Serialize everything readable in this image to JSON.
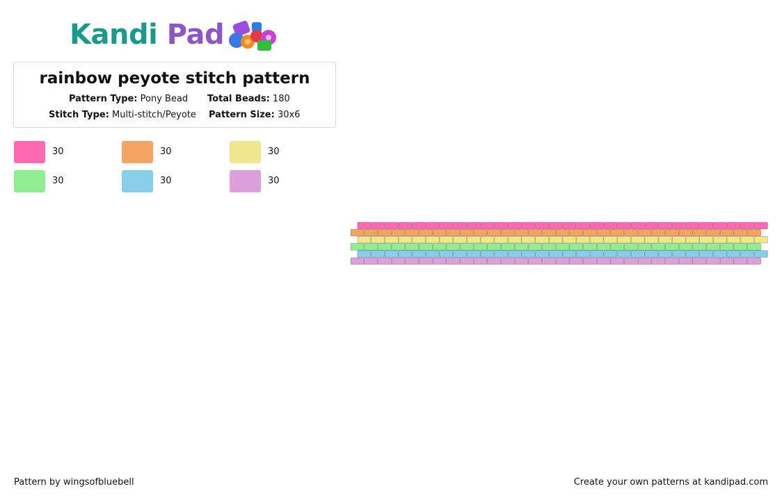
{
  "brand": {
    "name_part1": "Kandi",
    "name_part2": "Pad",
    "logo_icon": "beads-icon"
  },
  "pattern": {
    "title": "rainbow peyote stitch pattern",
    "type_label": "Pattern Type:",
    "type_value": "Pony Bead",
    "total_label": "Total Beads:",
    "total_value": "180",
    "stitch_label": "Stitch Type:",
    "stitch_value": "Multi-stitch/Peyote",
    "size_label": "Pattern Size:",
    "size_value": "30x6"
  },
  "palette": [
    {
      "color": "#ff69b4",
      "count": "30"
    },
    {
      "color": "#f4a460",
      "count": "30"
    },
    {
      "color": "#f0e68c",
      "count": "30"
    },
    {
      "color": "#90ee90",
      "count": "30"
    },
    {
      "color": "#87ceeb",
      "count": "30"
    },
    {
      "color": "#dda0dd",
      "count": "30"
    }
  ],
  "grid": {
    "columns": 30,
    "rows": 6,
    "row_colors": [
      "#ff69b4",
      "#f4a460",
      "#f0e68c",
      "#90ee90",
      "#87ceeb",
      "#dda0dd"
    ]
  },
  "footer": {
    "credit": "Pattern by wingsofbluebell",
    "promo": "Create your own patterns at kandipad.com"
  }
}
